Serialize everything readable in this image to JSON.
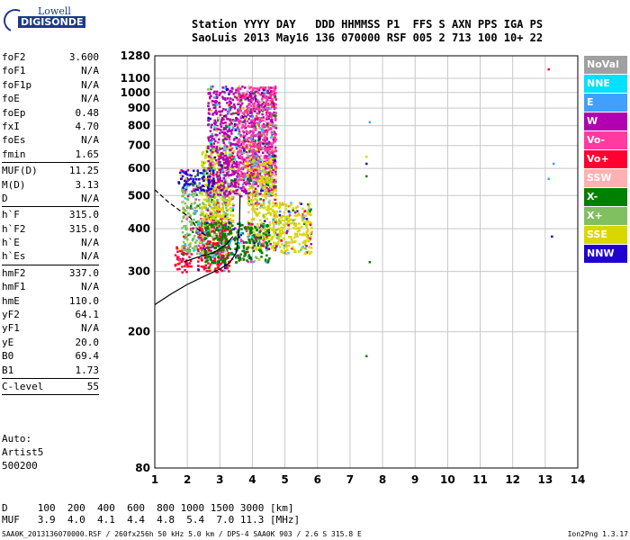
{
  "logo": {
    "line1": "Lowell",
    "line2": "DIGISONDE"
  },
  "header": {
    "line1": "Station YYYY DAY   DDD HHMMSS P1  FFS S AXN PPS IGA PS",
    "line2": "SaoLuis 2013 May16 136 070000 RSF 005 2 713 100 10+ 22"
  },
  "params": [
    {
      "name": "foF2",
      "value": "3.600",
      "sep": false
    },
    {
      "name": "foF1",
      "value": "N/A",
      "sep": false
    },
    {
      "name": "foF1p",
      "value": "N/A",
      "sep": false
    },
    {
      "name": "foE",
      "value": "N/A",
      "sep": false
    },
    {
      "name": "foEp",
      "value": "0.48",
      "sep": false
    },
    {
      "name": "fxI",
      "value": "4.70",
      "sep": false
    },
    {
      "name": "foEs",
      "value": "N/A",
      "sep": false
    },
    {
      "name": "fmin",
      "value": "1.65",
      "sep": true
    },
    {
      "name": "MUF(D)",
      "value": "11.25",
      "sep": false
    },
    {
      "name": "M(D)",
      "value": "3.13",
      "sep": false
    },
    {
      "name": "D",
      "value": "N/A",
      "sep": true
    },
    {
      "name": "h`F",
      "value": "315.0",
      "sep": false
    },
    {
      "name": "h`F2",
      "value": "315.0",
      "sep": false
    },
    {
      "name": "h`E",
      "value": "N/A",
      "sep": false
    },
    {
      "name": "h`Es",
      "value": "N/A",
      "sep": true
    },
    {
      "name": "hmF2",
      "value": "337.0",
      "sep": false
    },
    {
      "name": "hmF1",
      "value": "N/A",
      "sep": false
    },
    {
      "name": "hmE",
      "value": "110.0",
      "sep": false
    },
    {
      "name": "yF2",
      "value": "64.1",
      "sep": false
    },
    {
      "name": "yF1",
      "value": "N/A",
      "sep": false
    },
    {
      "name": "yE",
      "value": "20.0",
      "sep": false
    },
    {
      "name": "B0",
      "value": "69.4",
      "sep": false
    },
    {
      "name": "B1",
      "value": "1.73",
      "sep": true
    },
    {
      "name": "C-level",
      "value": "55",
      "sep": true
    }
  ],
  "auto": {
    "line1": "Auto:",
    "line2": "Artist5",
    "line3": "500200"
  },
  "muf_table": {
    "d_row": "D     100  200  400  600  800 1000 1500 3000 [km]",
    "muf_row": "MUF   3.9  4.0  4.1  4.4  4.8  5.4  7.0 11.3 [MHz]"
  },
  "footer": {
    "left": "SAA0K_2013136070000.RSF / 260fx256h 50 kHz 5.0 km / DPS-4 SAA0K 903 / 2.6 S 315.8 E",
    "right": "Ion2Png 1.3.17"
  },
  "legend": [
    {
      "label": "NoVal",
      "color": "#a0a0a0"
    },
    {
      "label": "NNE",
      "color": "#00e0ff"
    },
    {
      "label": "E",
      "color": "#40a0ff"
    },
    {
      "label": "W",
      "color": "#b000b0"
    },
    {
      "label": "Vo-",
      "color": "#ff3aa0"
    },
    {
      "label": "Vo+",
      "color": "#ff0030"
    },
    {
      "label": "SSW",
      "color": "#ffb0b0"
    },
    {
      "label": "X-",
      "color": "#008000"
    },
    {
      "label": "X+",
      "color": "#80c060"
    },
    {
      "label": "SSE",
      "color": "#d8d800"
    },
    {
      "label": "NNW",
      "color": "#2000d0"
    }
  ],
  "chart_data": {
    "type": "scatter",
    "xlabel": "",
    "ylabel": "",
    "xlim": [
      1,
      14
    ],
    "ylim": [
      80,
      1280
    ],
    "x_ticks": [
      1,
      2,
      3,
      4,
      5,
      6,
      7,
      8,
      9,
      10,
      11,
      12,
      13,
      14
    ],
    "y_ticks": [
      80,
      200,
      300,
      400,
      500,
      600,
      700,
      800,
      900,
      1000,
      1100,
      1280
    ],
    "y_scale": "log",
    "grid": true,
    "legend_position": "right",
    "echo_clouds": [
      {
        "f_range": [
          1.6,
          2.1
        ],
        "h_range": [
          300,
          360
        ],
        "mode": "Vo+"
      },
      {
        "f_range": [
          1.8,
          3.2
        ],
        "h_range": [
          340,
          540
        ],
        "mode": "X+"
      },
      {
        "f_range": [
          2.3,
          3.3
        ],
        "h_range": [
          300,
          420
        ],
        "mode": "Vo+"
      },
      {
        "f_range": [
          2.4,
          3.4
        ],
        "h_range": [
          400,
          700
        ],
        "mode": "SSE"
      },
      {
        "f_range": [
          2.6,
          4.7
        ],
        "h_range": [
          500,
          1050
        ],
        "mode": "W"
      },
      {
        "f_range": [
          3.5,
          4.7
        ],
        "h_range": [
          550,
          1050
        ],
        "mode": "Vo-"
      },
      {
        "f_range": [
          3.8,
          4.7
        ],
        "h_range": [
          350,
          650
        ],
        "mode": "SSE"
      },
      {
        "f_range": [
          4.6,
          5.8
        ],
        "h_range": [
          340,
          480
        ],
        "mode": "SSE"
      },
      {
        "f_range": [
          1.7,
          2.8
        ],
        "h_range": [
          520,
          600
        ],
        "mode": "NNW"
      },
      {
        "f_range": [
          2.5,
          4.5
        ],
        "h_range": [
          320,
          420
        ],
        "mode": "X-"
      }
    ],
    "isolated_points": [
      {
        "f": 7.5,
        "h": 650,
        "mode": "SSE"
      },
      {
        "f": 7.5,
        "h": 620,
        "mode": "NNW"
      },
      {
        "f": 7.5,
        "h": 570,
        "mode": "X-"
      },
      {
        "f": 7.6,
        "h": 820,
        "mode": "E"
      },
      {
        "f": 7.6,
        "h": 320,
        "mode": "X-"
      },
      {
        "f": 7.5,
        "h": 170,
        "mode": "X-"
      },
      {
        "f": 13.1,
        "h": 1170,
        "mode": "Vo+"
      },
      {
        "f": 13.25,
        "h": 620,
        "mode": "E"
      },
      {
        "f": 13.1,
        "h": 560,
        "mode": "E"
      },
      {
        "f": 13.2,
        "h": 380,
        "mode": "NNW"
      }
    ],
    "profile_solid": [
      [
        1.0,
        240
      ],
      [
        1.5,
        258
      ],
      [
        2.0,
        275
      ],
      [
        2.5,
        290
      ],
      [
        3.0,
        305
      ],
      [
        3.3,
        318
      ],
      [
        3.5,
        340
      ],
      [
        3.6,
        400
      ],
      [
        3.62,
        500
      ]
    ],
    "virtual_trace_solid": [
      [
        1.9,
        320
      ],
      [
        2.3,
        330
      ],
      [
        2.8,
        340
      ],
      [
        3.2,
        360
      ],
      [
        3.4,
        380
      ]
    ],
    "virtual_trace_dashed": [
      [
        1.0,
        520
      ],
      [
        1.4,
        480
      ],
      [
        1.8,
        450
      ],
      [
        2.1,
        430
      ],
      [
        2.3,
        400
      ],
      [
        2.6,
        380
      ]
    ]
  }
}
